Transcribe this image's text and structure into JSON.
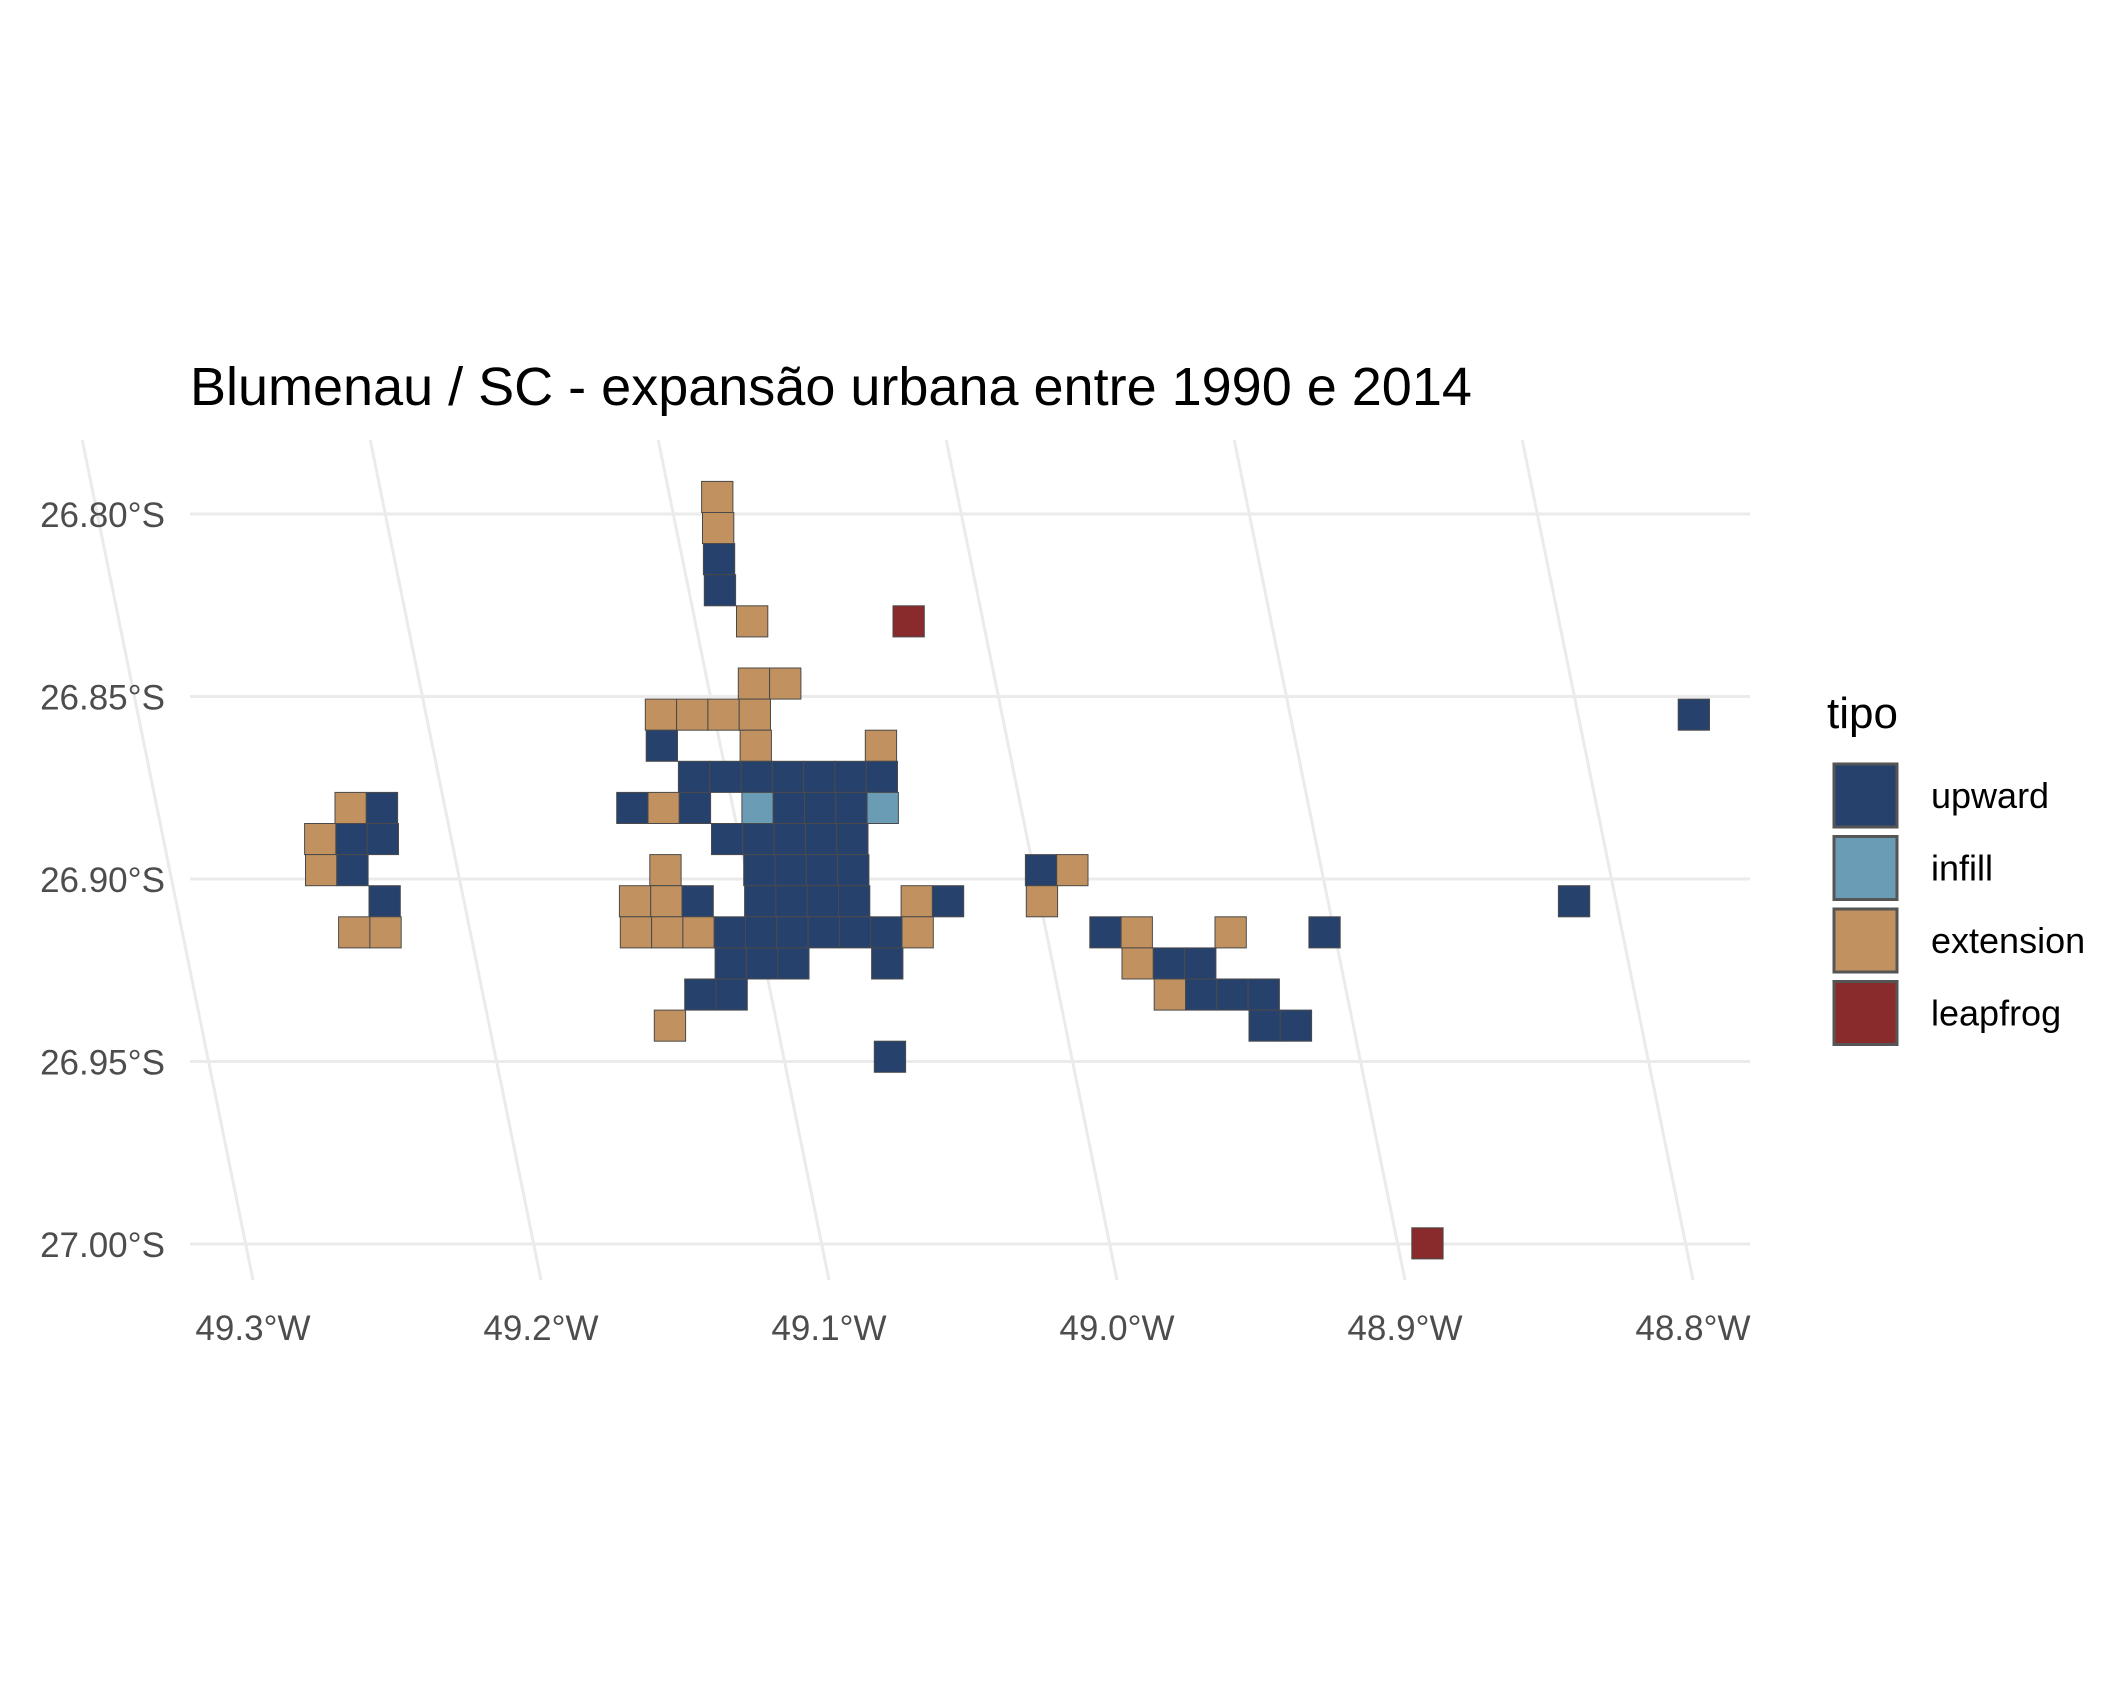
{
  "chart_data": {
    "type": "heatmap",
    "title": "Blumenau / SC - expansão urbana entre 1990 e 2014",
    "xlabel": "",
    "ylabel": "",
    "x_ticks": [
      "49.3°W",
      "49.2°W",
      "49.1°W",
      "49.0°W",
      "48.9°W",
      "48.8°W"
    ],
    "y_ticks": [
      "26.80°S",
      "26.85°S",
      "26.90°S",
      "26.95°S",
      "27.00°S"
    ],
    "grid": true,
    "legend": {
      "title": "tipo",
      "placement": "right",
      "entries": [
        {
          "key": "U",
          "label": "upward",
          "color": "#27416d"
        },
        {
          "key": "I",
          "label": "infill",
          "color": "#6b9cb6"
        },
        {
          "key": "E",
          "label": "extension",
          "color": "#c1925f"
        },
        {
          "key": "L",
          "label": "leapfrog",
          "color": "#892b2c"
        }
      ]
    },
    "grid_cells": {
      "col_origin_lon": -49.3043,
      "col_step_deg": 0.01086,
      "row_origin_lat": -26.7935,
      "row_step_deg": 0.00852,
      "rows": [
        {
          "row": 0,
          "cells": [
            [
              14,
              "E"
            ]
          ]
        },
        {
          "row": 1,
          "cells": [
            [
              14,
              "E"
            ]
          ]
        },
        {
          "row": 2,
          "cells": [
            [
              14,
              "U"
            ]
          ]
        },
        {
          "row": 3,
          "cells": [
            [
              14,
              "U"
            ]
          ]
        },
        {
          "row": 4,
          "cells": [
            [
              15,
              "E"
            ],
            [
              20,
              "L"
            ]
          ]
        },
        {
          "row": 6,
          "cells": [
            [
              15,
              "E"
            ],
            [
              16,
              "E"
            ]
          ]
        },
        {
          "row": 7,
          "cells": [
            [
              12,
              "E"
            ],
            [
              13,
              "E"
            ],
            [
              14,
              "E"
            ],
            [
              15,
              "E"
            ],
            [
              45,
              "U"
            ]
          ]
        },
        {
          "row": 8,
          "cells": [
            [
              12,
              "U"
            ],
            [
              15,
              "E"
            ],
            [
              19,
              "E"
            ]
          ]
        },
        {
          "row": 9,
          "cells": [
            [
              13,
              "U"
            ],
            [
              14,
              "U"
            ],
            [
              15,
              "U"
            ],
            [
              16,
              "U"
            ],
            [
              17,
              "U"
            ],
            [
              18,
              "U"
            ],
            [
              19,
              "U"
            ]
          ]
        },
        {
          "row": 10,
          "cells": [
            [
              2,
              "E"
            ],
            [
              3,
              "U"
            ],
            [
              11,
              "U"
            ],
            [
              12,
              "E"
            ],
            [
              13,
              "U"
            ],
            [
              15,
              "I"
            ],
            [
              16,
              "U"
            ],
            [
              17,
              "U"
            ],
            [
              18,
              "U"
            ],
            [
              19,
              "I"
            ]
          ]
        },
        {
          "row": 11,
          "cells": [
            [
              1,
              "E"
            ],
            [
              2,
              "U"
            ],
            [
              3,
              "U"
            ],
            [
              14,
              "U"
            ],
            [
              15,
              "U"
            ],
            [
              16,
              "U"
            ],
            [
              17,
              "U"
            ],
            [
              18,
              "U"
            ]
          ]
        },
        {
          "row": 12,
          "cells": [
            [
              1,
              "E"
            ],
            [
              2,
              "U"
            ],
            [
              12,
              "E"
            ],
            [
              15,
              "U"
            ],
            [
              16,
              "U"
            ],
            [
              17,
              "U"
            ],
            [
              18,
              "U"
            ],
            [
              24,
              "U"
            ],
            [
              25,
              "E"
            ]
          ]
        },
        {
          "row": 13,
          "cells": [
            [
              3,
              "U"
            ],
            [
              11,
              "E"
            ],
            [
              12,
              "E"
            ],
            [
              13,
              "U"
            ],
            [
              15,
              "U"
            ],
            [
              16,
              "U"
            ],
            [
              17,
              "U"
            ],
            [
              18,
              "U"
            ],
            [
              20,
              "E"
            ],
            [
              21,
              "U"
            ],
            [
              24,
              "E"
            ],
            [
              41,
              "U"
            ]
          ]
        },
        {
          "row": 14,
          "cells": [
            [
              2,
              "E"
            ],
            [
              3,
              "E"
            ],
            [
              11,
              "E"
            ],
            [
              12,
              "E"
            ],
            [
              13,
              "E"
            ],
            [
              14,
              "U"
            ],
            [
              15,
              "U"
            ],
            [
              16,
              "U"
            ],
            [
              17,
              "U"
            ],
            [
              18,
              "U"
            ],
            [
              19,
              "U"
            ],
            [
              20,
              "E"
            ],
            [
              26,
              "U"
            ],
            [
              27,
              "E"
            ],
            [
              30,
              "E"
            ],
            [
              33,
              "U"
            ]
          ]
        },
        {
          "row": 15,
          "cells": [
            [
              14,
              "U"
            ],
            [
              15,
              "U"
            ],
            [
              16,
              "U"
            ],
            [
              19,
              "U"
            ],
            [
              27,
              "E"
            ],
            [
              28,
              "U"
            ],
            [
              29,
              "U"
            ]
          ]
        },
        {
          "row": 16,
          "cells": [
            [
              13,
              "U"
            ],
            [
              14,
              "U"
            ],
            [
              28,
              "E"
            ],
            [
              29,
              "U"
            ],
            [
              30,
              "U"
            ],
            [
              31,
              "U"
            ]
          ]
        },
        {
          "row": 17,
          "cells": [
            [
              12,
              "E"
            ],
            [
              31,
              "U"
            ],
            [
              32,
              "U"
            ]
          ]
        },
        {
          "row": 18,
          "cells": [
            [
              19,
              "U"
            ]
          ]
        },
        {
          "row": 24,
          "cells": [
            [
              36,
              "L"
            ]
          ]
        }
      ]
    }
  }
}
